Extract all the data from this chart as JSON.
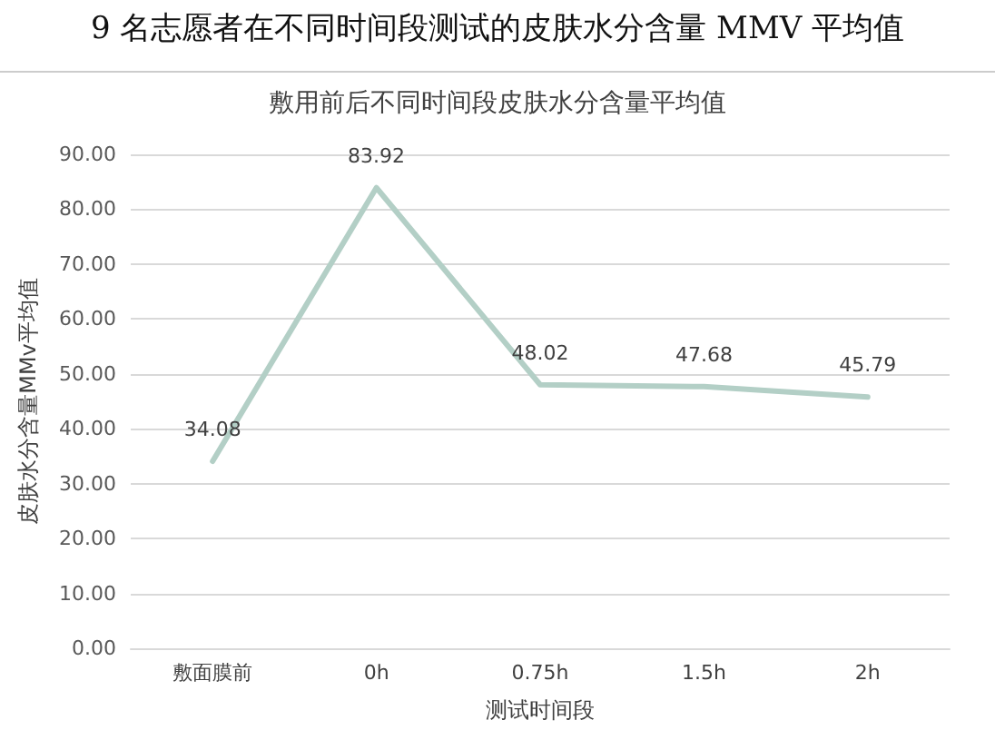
{
  "chart_data": {
    "type": "line",
    "title": "9 名志愿者在不同时间段测试的皮肤水分含量 MMV 平均值",
    "subtitle": "敷用前后不同时间段皮肤水分含量平均值",
    "xlabel": "测试时间段",
    "ylabel": "皮肤水分含量MMv平均值",
    "categories": [
      "敷面膜前",
      "0h",
      "0.75h",
      "1.5h",
      "2h"
    ],
    "series": [
      {
        "color": "#b3cfc6",
        "values": [
          34.08,
          83.92,
          48.02,
          47.68,
          45.79
        ]
      }
    ],
    "ylim": [
      0,
      90
    ],
    "yticks": [
      {
        "value": 0,
        "label": "0.00"
      },
      {
        "value": 10,
        "label": "10.00"
      },
      {
        "value": 20,
        "label": "20.00"
      },
      {
        "value": 30,
        "label": "30.00"
      },
      {
        "value": 40,
        "label": "40.00"
      },
      {
        "value": 50,
        "label": "50.00"
      },
      {
        "value": 60,
        "label": "60.00"
      },
      {
        "value": 70,
        "label": "70.00"
      },
      {
        "value": 80,
        "label": "80.00"
      },
      {
        "value": 90,
        "label": "90.00"
      }
    ],
    "grid": "y",
    "marker": "none",
    "line_style": "solid",
    "data_labels": true
  }
}
